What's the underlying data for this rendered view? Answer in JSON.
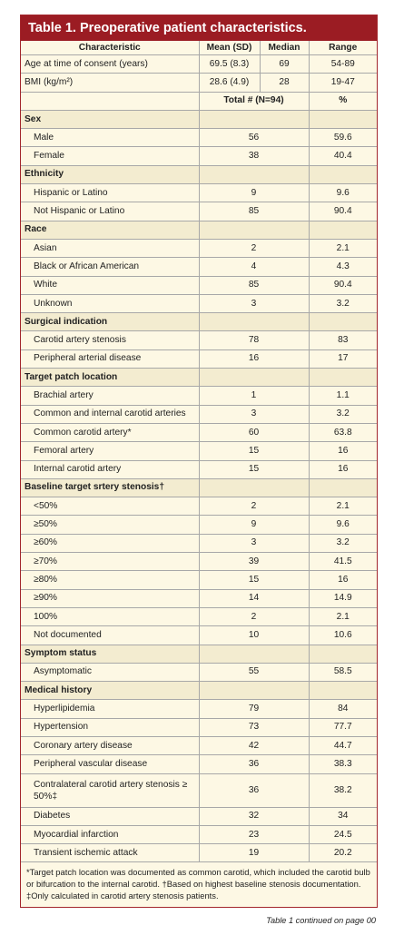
{
  "title": "Table 1. Preoperative patient characteristics.",
  "headers": {
    "characteristic": "Characteristic",
    "mean_sd": "Mean (SD)",
    "median": "Median",
    "range": "Range"
  },
  "summary_rows": [
    {
      "label": "Age at time of consent (years)",
      "mean_sd": "69.5 (8.3)",
      "median": "69",
      "range": "54-89"
    },
    {
      "label": "BMI (kg/m²)",
      "mean_sd": "28.6 (4.9)",
      "median": "28",
      "range": "19-47"
    }
  ],
  "totals_header": {
    "total": "Total # (N=94)",
    "percent": "%"
  },
  "sections": [
    {
      "name": "Sex",
      "rows": [
        {
          "label": "Male",
          "n": "56",
          "pct": "59.6"
        },
        {
          "label": "Female",
          "n": "38",
          "pct": "40.4"
        }
      ]
    },
    {
      "name": "Ethnicity",
      "rows": [
        {
          "label": "Hispanic or Latino",
          "n": "9",
          "pct": "9.6"
        },
        {
          "label": "Not Hispanic or Latino",
          "n": "85",
          "pct": "90.4"
        }
      ]
    },
    {
      "name": "Race",
      "rows": [
        {
          "label": "Asian",
          "n": "2",
          "pct": "2.1"
        },
        {
          "label": "Black or African American",
          "n": "4",
          "pct": "4.3"
        },
        {
          "label": "White",
          "n": "85",
          "pct": "90.4"
        },
        {
          "label": "Unknown",
          "n": "3",
          "pct": "3.2"
        }
      ]
    },
    {
      "name": "Surgical indication",
      "rows": [
        {
          "label": "Carotid artery stenosis",
          "n": "78",
          "pct": "83"
        },
        {
          "label": "Peripheral arterial disease",
          "n": "16",
          "pct": "17"
        }
      ]
    },
    {
      "name": "Target patch location",
      "rows": [
        {
          "label": "Brachial artery",
          "n": "1",
          "pct": "1.1"
        },
        {
          "label": "Common and internal carotid arteries",
          "n": "3",
          "pct": "3.2"
        },
        {
          "label": "Common carotid artery*",
          "n": "60",
          "pct": "63.8"
        },
        {
          "label": "Femoral artery",
          "n": "15",
          "pct": "16"
        },
        {
          "label": "Internal carotid artery",
          "n": "15",
          "pct": "16"
        }
      ]
    },
    {
      "name": "Baseline target srtery stenosis†",
      "rows": [
        {
          "label": "<50%",
          "n": "2",
          "pct": "2.1"
        },
        {
          "label": "≥50%",
          "n": "9",
          "pct": "9.6"
        },
        {
          "label": "≥60%",
          "n": "3",
          "pct": "3.2"
        },
        {
          "label": "≥70%",
          "n": "39",
          "pct": "41.5"
        },
        {
          "label": "≥80%",
          "n": "15",
          "pct": "16"
        },
        {
          "label": "≥90%",
          "n": "14",
          "pct": "14.9"
        },
        {
          "label": "100%",
          "n": "2",
          "pct": "2.1"
        },
        {
          "label": "Not documented",
          "n": "10",
          "pct": "10.6"
        }
      ]
    },
    {
      "name": "Symptom status",
      "rows": [
        {
          "label": "Asymptomatic",
          "n": "55",
          "pct": "58.5"
        }
      ]
    },
    {
      "name": "Medical history",
      "rows": [
        {
          "label": "Hyperlipidemia",
          "n": "79",
          "pct": "84"
        },
        {
          "label": "Hypertension",
          "n": "73",
          "pct": "77.7"
        },
        {
          "label": "Coronary artery disease",
          "n": "42",
          "pct": "44.7"
        },
        {
          "label": "Peripheral vascular disease",
          "n": "36",
          "pct": "38.3"
        },
        {
          "label": "Contralateral carotid artery stenosis ≥ 50%‡",
          "n": "36",
          "pct": "38.2",
          "tall": true
        },
        {
          "label": "Diabetes",
          "n": "32",
          "pct": "34"
        },
        {
          "label": "Myocardial infarction",
          "n": "23",
          "pct": "24.5"
        },
        {
          "label": "Transient ischemic attack",
          "n": "19",
          "pct": "20.2"
        }
      ]
    }
  ],
  "footnote": "*Target patch location was documented as common carotid, which included the carotid bulb or bifurcation to the internal carotid. †Based on highest baseline stenosis documentation. ‡Only calculated in carotid artery stenosis patients.",
  "continued": "Table 1 continued on page 00"
}
